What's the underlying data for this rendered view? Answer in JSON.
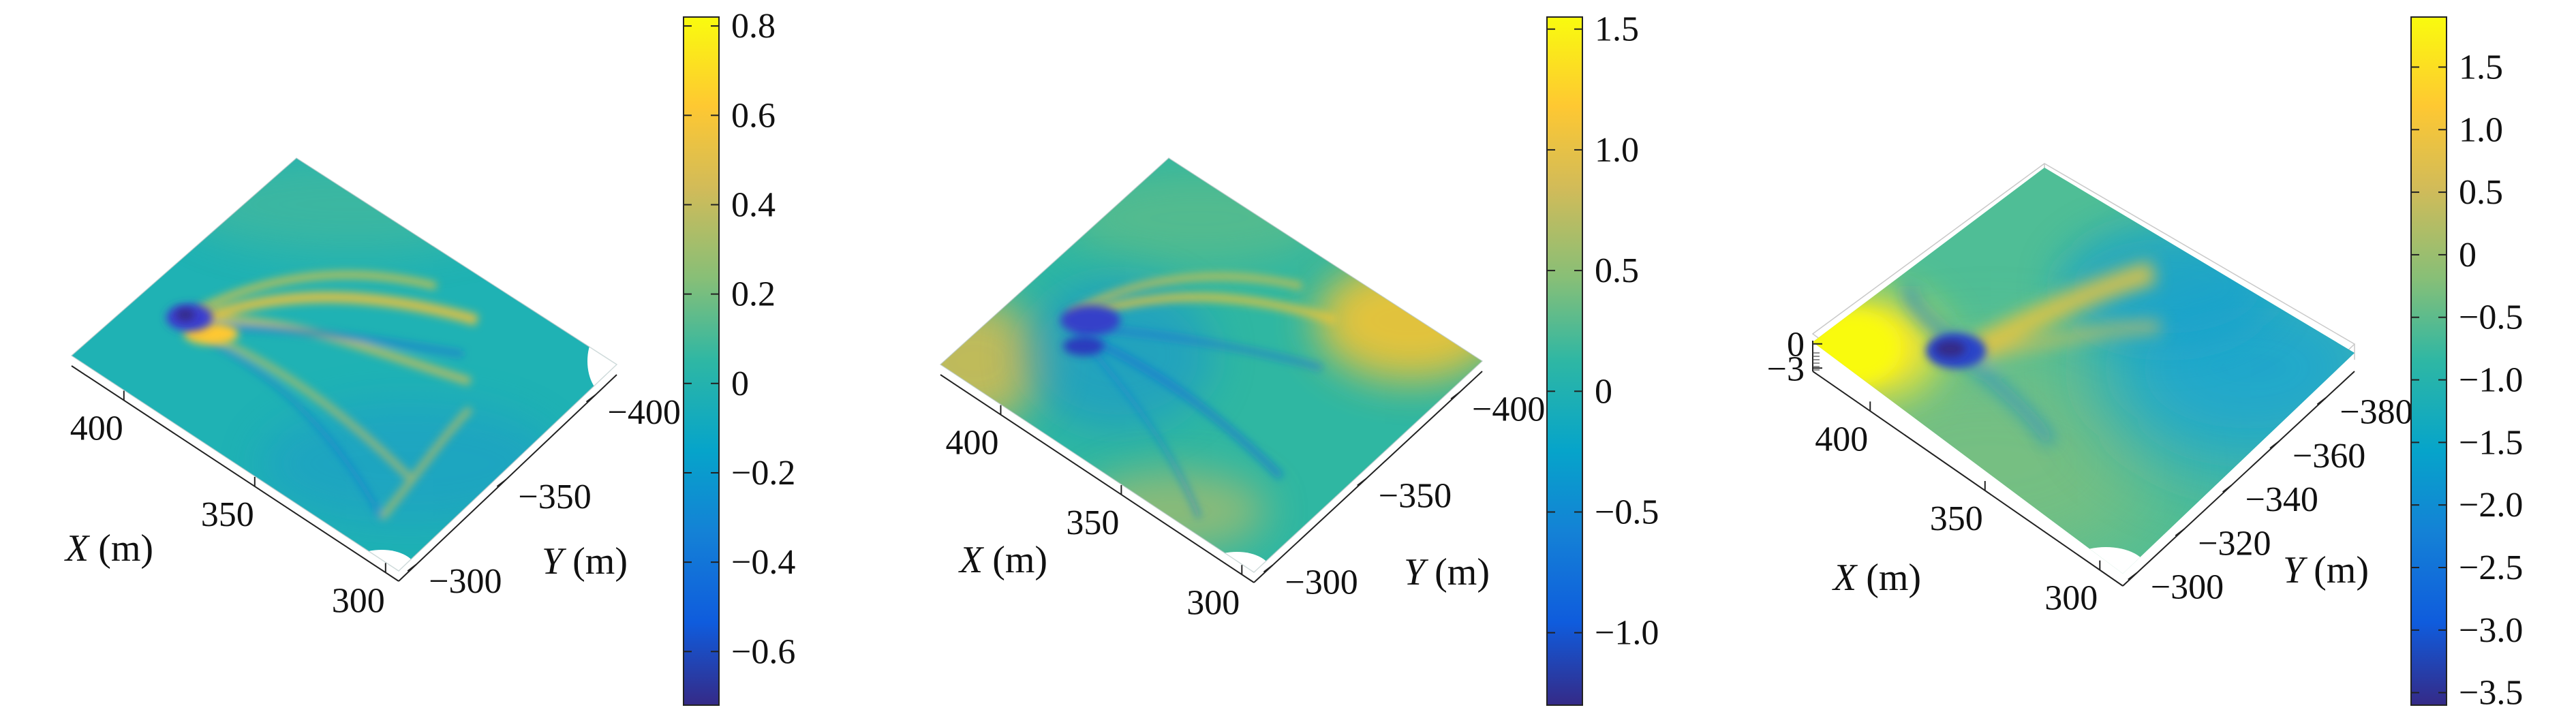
{
  "chart_data": [
    {
      "type": "surface",
      "panel": "left",
      "x_title_var": "X",
      "x_title_unit": " (m)",
      "y_title_var": "Y",
      "y_title_unit": " (m)",
      "x_ticks": [
        400,
        350,
        300
      ],
      "y_ticks": [
        -400,
        -350,
        -300
      ],
      "x_tick_labels": [
        "400",
        "350",
        "300"
      ],
      "y_tick_labels": [
        "−400",
        "−350",
        "−300"
      ],
      "z_ticks": [],
      "z_tick_labels": [],
      "colorbar": {
        "range": [
          -0.72,
          0.82
        ],
        "ticks": [
          -0.6,
          -0.4,
          -0.2,
          0,
          0.2,
          0.4,
          0.6,
          0.8
        ],
        "tick_labels": [
          "−0.6",
          "−0.4",
          "−0.2",
          "0",
          "0.2",
          "0.4",
          "0.6",
          "0.8"
        ]
      },
      "base_value": 0.0,
      "features": [
        {
          "kind": "low",
          "x": 372,
          "y": -363,
          "value": -0.6
        },
        {
          "kind": "high",
          "x": 368,
          "y": -366,
          "value": 0.7
        },
        {
          "kind": "high-streak",
          "x": 352,
          "y": -372,
          "value": 0.45
        },
        {
          "kind": "high-streak",
          "x": 340,
          "y": -378,
          "value": 0.35
        },
        {
          "kind": "low-streak",
          "x": 330,
          "y": -370,
          "value": -0.35
        }
      ]
    },
    {
      "type": "surface",
      "panel": "middle",
      "x_title_var": "X",
      "x_title_unit": " (m)",
      "y_title_var": "Y",
      "y_title_unit": " (m)",
      "x_ticks": [
        400,
        350,
        300
      ],
      "y_ticks": [
        -400,
        -350,
        -300
      ],
      "x_tick_labels": [
        "400",
        "350",
        "300"
      ],
      "y_tick_labels": [
        "−400",
        "−350",
        "−300"
      ],
      "z_ticks": [],
      "z_tick_labels": [],
      "colorbar": {
        "range": [
          -1.3,
          1.55
        ],
        "ticks": [
          -1.0,
          -0.5,
          0,
          0.5,
          1.0,
          1.5
        ],
        "tick_labels": [
          "−1.0",
          "−0.5",
          "0",
          "0.5",
          "1.0",
          "1.5"
        ]
      },
      "base_value": 0.1,
      "features": [
        {
          "kind": "low",
          "x": 372,
          "y": -362,
          "value": -1.1
        },
        {
          "kind": "high",
          "x": 410,
          "y": -330,
          "value": 1.0
        },
        {
          "kind": "high",
          "x": 320,
          "y": -400,
          "value": 1.3
        },
        {
          "kind": "high-streak",
          "x": 352,
          "y": -372,
          "value": 0.6
        },
        {
          "kind": "low-streak",
          "x": 330,
          "y": -368,
          "value": -0.5
        }
      ]
    },
    {
      "type": "surface",
      "panel": "right",
      "x_title_var": "X",
      "x_title_unit": " (m)",
      "y_title_var": "Y",
      "y_title_unit": " (m)",
      "x_ticks": [
        400,
        350,
        300
      ],
      "y_ticks": [
        -380,
        -360,
        -340,
        -320,
        -300
      ],
      "x_tick_labels": [
        "400",
        "350",
        "300"
      ],
      "y_tick_labels": [
        "−380",
        "−360",
        "−340",
        "−320",
        "−300"
      ],
      "z_ticks": [
        0,
        -3
      ],
      "z_tick_labels": [
        "0",
        "−3"
      ],
      "colorbar": {
        "range": [
          -3.6,
          1.9
        ],
        "ticks": [
          -3.5,
          -3.0,
          -2.5,
          -2.0,
          -1.5,
          -1.0,
          -0.5,
          0,
          0.5,
          1.0,
          1.5
        ],
        "tick_labels": [
          "−3.5",
          "−3.0",
          "−2.5",
          "−2.0",
          "−1.5",
          "−1.0",
          "−0.5",
          "0",
          "0.5",
          "1.0",
          "1.5"
        ]
      },
      "base_value": -0.4,
      "features": [
        {
          "kind": "high",
          "x": 408,
          "y": -330,
          "value": 1.6
        },
        {
          "kind": "low",
          "x": 372,
          "y": -362,
          "value": -3.2
        },
        {
          "kind": "high",
          "x": 355,
          "y": -375,
          "value": 1.0
        },
        {
          "kind": "low-region",
          "x": 330,
          "y": -380,
          "value": -1.5
        }
      ]
    }
  ]
}
